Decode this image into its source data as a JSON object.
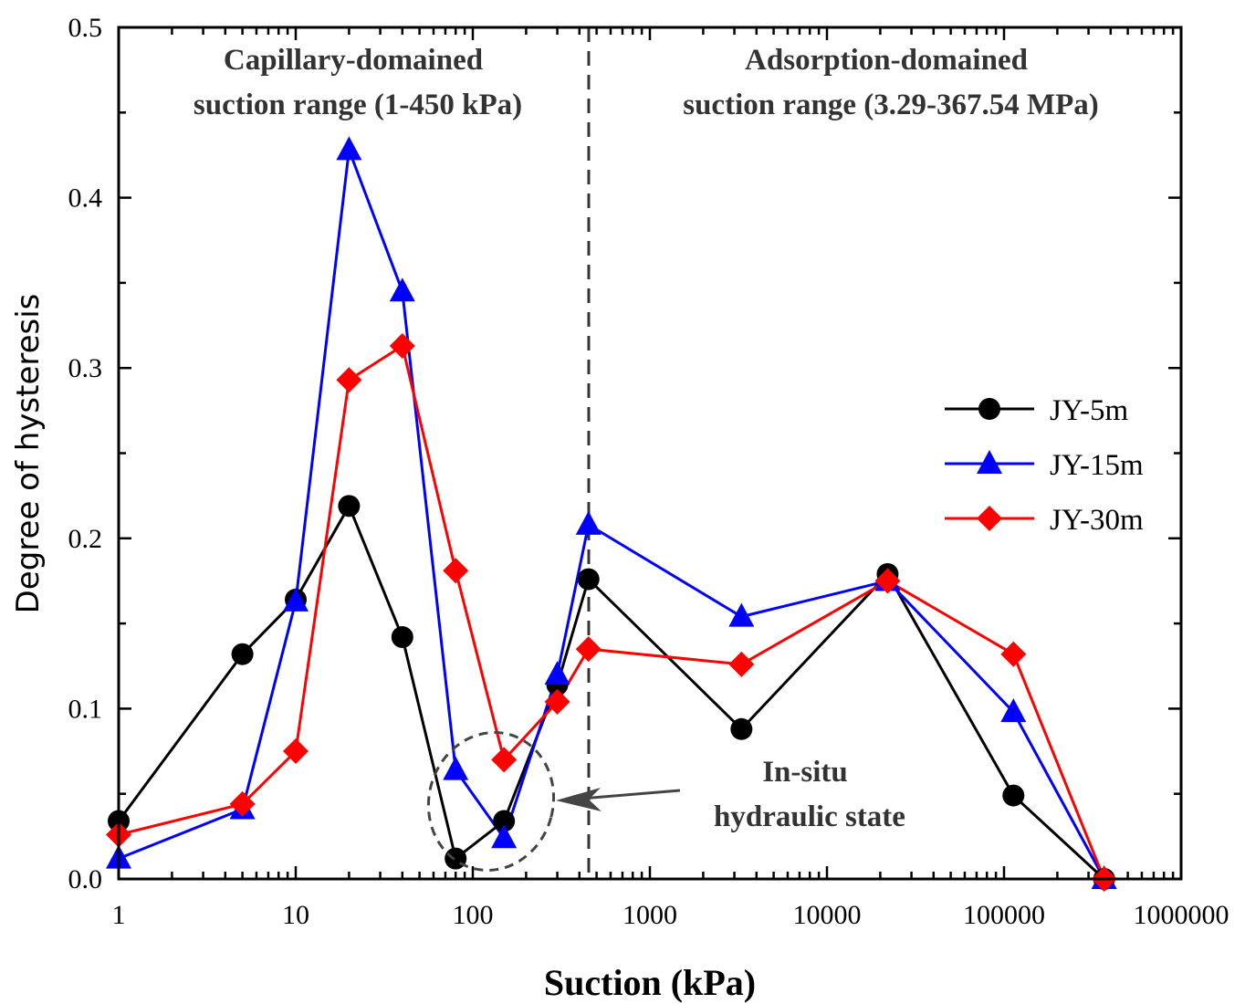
{
  "chart_data": {
    "type": "line",
    "xlabel": "Suction (kPa)",
    "ylabel": "Degree of hysteresis",
    "xscale": "log",
    "xlim": [
      1,
      1000000
    ],
    "ylim": [
      0,
      0.5
    ],
    "xticks": [
      "1",
      "10",
      "100",
      "1000",
      "10000",
      "100000",
      "1000000"
    ],
    "yticks": [
      "0.0",
      "0.1",
      "0.2",
      "0.3",
      "0.4",
      "0.5"
    ],
    "legend_position": "right",
    "x": [
      1,
      5,
      10,
      20,
      40,
      80,
      150,
      300,
      450,
      3290,
      22000,
      113000,
      367540
    ],
    "series": [
      {
        "name": "JY-5m",
        "color": "#000000",
        "marker": "circle",
        "values": [
          0.034,
          0.132,
          0.164,
          0.219,
          0.142,
          0.012,
          0.034,
          0.114,
          0.176,
          0.088,
          0.179,
          0.049,
          0.0
        ]
      },
      {
        "name": "JY-15m",
        "color": "#0000ff",
        "marker": "triangle",
        "values": [
          0.012,
          0.041,
          0.163,
          0.428,
          0.345,
          0.064,
          0.024,
          0.12,
          0.208,
          0.154,
          0.175,
          0.098,
          0.0
        ]
      },
      {
        "name": "JY-30m",
        "color": "#ff0000",
        "marker": "diamond",
        "values": [
          0.026,
          0.044,
          0.075,
          0.293,
          0.313,
          0.181,
          0.07,
          0.104,
          0.135,
          0.126,
          0.175,
          0.132,
          0.0
        ]
      }
    ],
    "divider_x": 450,
    "annotations": {
      "left_region": [
        "Capillary-domained",
        "suction range (1-450 kPa)"
      ],
      "right_region": [
        "Adsorption-domained",
        "suction range (3.29-367.54 MPa)"
      ],
      "insitu": [
        "In-situ",
        "hydraulic state"
      ]
    }
  }
}
